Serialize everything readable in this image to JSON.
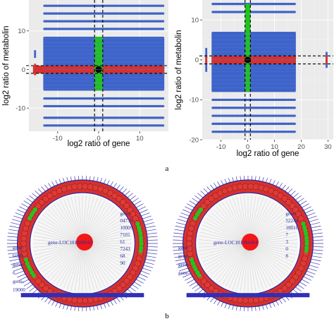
{
  "captions": {
    "top": "a",
    "bottom": "b"
  },
  "colors": {
    "blue": "#3e63c9",
    "red": "#d6312f",
    "green": "#22c41f",
    "black": "#000000",
    "panel_bg": "#ebebeb",
    "node_label": "#2a2aa0",
    "edge": "#b8b8b8"
  },
  "chart_data": [
    {
      "type": "scatter",
      "xlabel": "log2 ratio of gene",
      "ylabel": "log2 ratio of metabolin",
      "xlim": [
        -17,
        17
      ],
      "ylim": [
        -16,
        18
      ],
      "xticks": [
        -10,
        0,
        10
      ],
      "xtick_labels": [
        "-10",
        "0",
        "10"
      ],
      "yticks": [
        -10,
        0,
        10
      ],
      "ytick_labels": [
        "-10",
        "0",
        "10"
      ],
      "grid": true,
      "threshold_lines": {
        "x": [
          -1,
          1
        ],
        "y": [
          -1,
          1
        ],
        "style": "dashed"
      },
      "regions": [
        {
          "color": "blue",
          "x": [
            -13.5,
            16
          ],
          "y": [
            -5.5,
            8.5
          ]
        },
        {
          "color": "red",
          "x": [
            -16,
            16
          ],
          "y": [
            -1,
            1
          ]
        },
        {
          "color": "green",
          "x": [
            -1,
            1
          ],
          "y": [
            -5.5,
            8.5
          ]
        },
        {
          "color": "black",
          "x": [
            -0.8,
            0.8
          ],
          "y": [
            -0.8,
            0.8
          ]
        }
      ],
      "bands": [
        {
          "y": 16.5,
          "x": [
            -13.5,
            16
          ]
        },
        {
          "y": 14.5,
          "x": [
            -13.5,
            16
          ]
        },
        {
          "y": 12.5,
          "x": [
            -13.5,
            16
          ]
        },
        {
          "y": 10.5,
          "x": [
            -13.5,
            16
          ]
        },
        {
          "y": -7.5,
          "x": [
            -13.5,
            16
          ]
        },
        {
          "y": -9.5,
          "x": [
            -13.5,
            16
          ]
        },
        {
          "y": -12.5,
          "x": [
            -13.5,
            16
          ]
        },
        {
          "y": -14.5,
          "x": [
            -13.5,
            16
          ]
        }
      ],
      "outlier_columns": [
        {
          "x": -15.5,
          "y": [
            -1.5,
            1.5
          ],
          "color": "red"
        },
        {
          "x": -15.5,
          "y": [
            3,
            5
          ],
          "color": "blue"
        }
      ]
    },
    {
      "type": "scatter",
      "xlabel": "log2 ratio of gene",
      "ylabel": "log2 ratio of metabolin",
      "xlim": [
        -17,
        32
      ],
      "ylim": [
        -20,
        15
      ],
      "xticks": [
        -10,
        0,
        10,
        20,
        30
      ],
      "xtick_labels": [
        "-10",
        "0",
        "10",
        "20",
        "30"
      ],
      "yticks": [
        -20,
        -10,
        0,
        10
      ],
      "ytick_labels": [
        "-20",
        "-10",
        "0",
        "10"
      ],
      "grid": true,
      "threshold_lines": {
        "x": [
          -1,
          1
        ],
        "y": [
          -1,
          1
        ],
        "style": "dashed"
      },
      "regions": [
        {
          "color": "blue",
          "x": [
            -13.5,
            18
          ],
          "y": [
            -8,
            7
          ]
        },
        {
          "color": "red",
          "x": [
            -13.5,
            18
          ],
          "y": [
            -1,
            1
          ]
        },
        {
          "color": "green",
          "x": [
            -1,
            1
          ],
          "y": [
            -8,
            14
          ]
        },
        {
          "color": "black",
          "x": [
            -0.8,
            0.8
          ],
          "y": [
            -0.8,
            0.8
          ]
        }
      ],
      "bands": [
        {
          "y": 14,
          "x": [
            -13.5,
            18
          ]
        },
        {
          "y": 12,
          "x": [
            -13.5,
            18
          ]
        },
        {
          "y": -10,
          "x": [
            -13.5,
            18
          ]
        },
        {
          "y": -12,
          "x": [
            -13.5,
            18
          ]
        },
        {
          "y": -14,
          "x": [
            -13.5,
            18
          ]
        },
        {
          "y": -16,
          "x": [
            -13.5,
            18
          ]
        },
        {
          "y": -18,
          "x": [
            -13.5,
            18
          ]
        }
      ],
      "outlier_columns": [
        {
          "x": -15.5,
          "y": [
            -3,
            3
          ],
          "color": "blue"
        },
        {
          "x": -15.5,
          "y": [
            -1,
            1
          ],
          "color": "red"
        },
        {
          "x": 29.5,
          "y": [
            -2,
            2
          ],
          "color": "blue"
        },
        {
          "x": 29.5,
          "y": [
            -1,
            1
          ],
          "color": "red"
        }
      ]
    }
  ],
  "networks": [
    {
      "center_label": "gene-LOC101099043",
      "side_labels": [
        "gene-",
        "04739",
        "10009",
        "7101",
        "61",
        "7243",
        "68",
        "90"
      ],
      "left_labels": [
        "gene-",
        "6090",
        "gene-",
        "6",
        "gene-",
        "19000"
      ]
    },
    {
      "center_label": "gene-LOC101094404",
      "side_labels": [
        "gene-",
        "52244",
        "18010",
        "7",
        "3",
        "0",
        "8"
      ],
      "left_labels": [
        "gene-",
        "gene-",
        "gene-",
        "gene-"
      ]
    }
  ]
}
